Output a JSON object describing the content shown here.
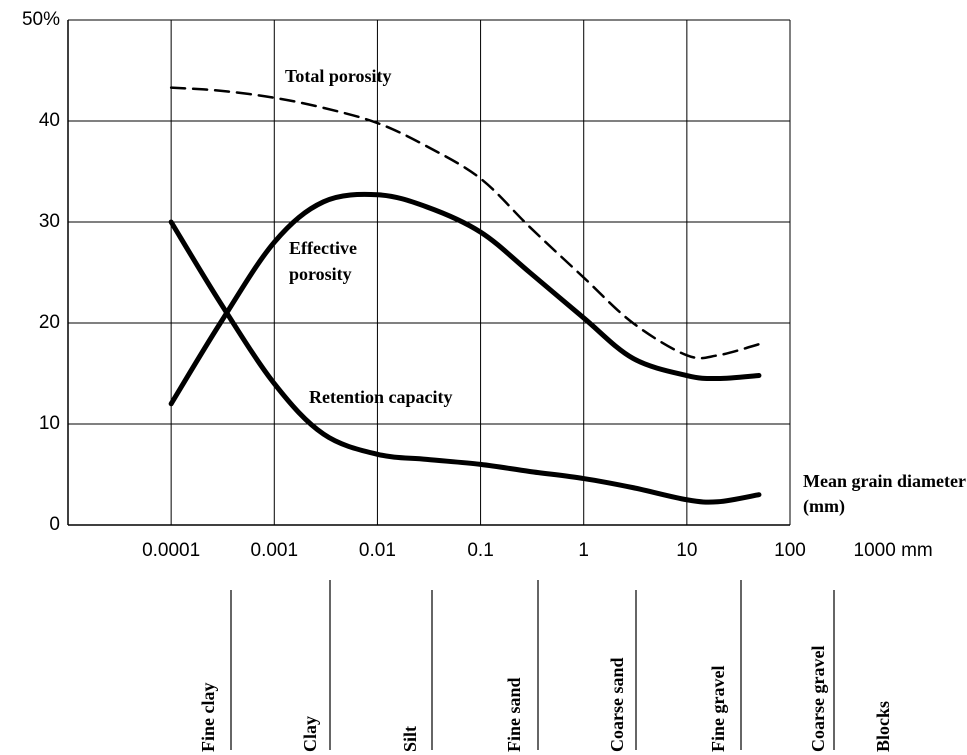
{
  "chart_data": {
    "type": "line",
    "x_log": true,
    "xlim": [
      1e-05,
      100
    ],
    "ylim": [
      0,
      50
    ],
    "xticks": [
      0.0001,
      0.001,
      0.01,
      0.1,
      1,
      10,
      100,
      {
        "value": 1000,
        "label": "1000 mm"
      }
    ],
    "yticks": [
      0,
      10,
      20,
      30,
      40,
      {
        "value": 50,
        "label": "50%"
      }
    ],
    "grid": true,
    "x_label": "Mean grain diameter (mm)",
    "x": [
      0.0001,
      0.0003,
      0.001,
      0.003,
      0.01,
      0.03,
      0.1,
      0.3,
      1,
      3,
      10,
      20,
      50
    ],
    "series": [
      {
        "name": "Total porosity",
        "color": "#000000",
        "line_style": "dashed",
        "line_width": 2.5,
        "values": [
          43.3,
          43,
          42.3,
          41.3,
          39.8,
          37.5,
          34.3,
          29.5,
          24.5,
          20,
          16.8,
          16.8,
          17.9
        ]
      },
      {
        "name": "Effective porosity",
        "color": "#000000",
        "line_style": "solid",
        "line_width": 5,
        "values": [
          12,
          20,
          28,
          32,
          32.7,
          31.5,
          29,
          25,
          20.5,
          16.5,
          14.8,
          14.5,
          14.8
        ]
      },
      {
        "name": "Retention capacity",
        "color": "#000000",
        "line_style": "solid",
        "line_width": 5,
        "values": [
          30,
          22,
          14,
          9,
          7,
          6.5,
          6,
          5.3,
          4.6,
          3.7,
          2.5,
          2.3,
          3
        ]
      }
    ],
    "classes": [
      "Fine clay",
      "Clay",
      "Silt",
      "Fine sand",
      "Coarse sand",
      "Fine gravel",
      "Coarse gravel",
      "Blocks"
    ]
  }
}
